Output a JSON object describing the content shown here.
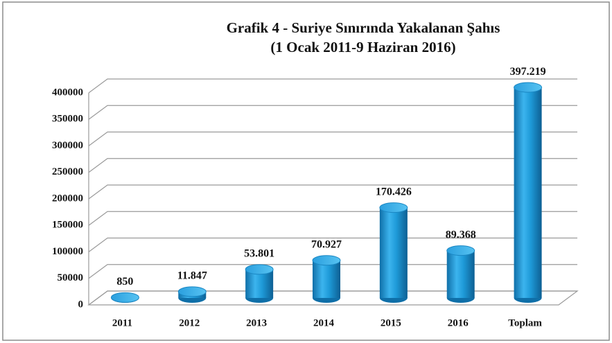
{
  "chart_data": {
    "type": "bar",
    "title": "Grafik 4 - Suriye Sınırında Yakalanan Şahıs",
    "subtitle": "(1 Ocak 2011-9 Haziran 2016)",
    "categories": [
      "2011",
      "2012",
      "2013",
      "2014",
      "2015",
      "2016",
      "Toplam"
    ],
    "values": [
      850,
      11847,
      53801,
      70927,
      170426,
      89368,
      397219
    ],
    "value_labels": [
      "850",
      "11.847",
      "53.801",
      "70.927",
      "170.426",
      "89.368",
      "397.219"
    ],
    "color": "#1e9ad8",
    "ylim": [
      0,
      400000
    ],
    "yticks": [
      0,
      50000,
      100000,
      150000,
      200000,
      250000,
      300000,
      350000,
      400000
    ],
    "grid": true
  }
}
